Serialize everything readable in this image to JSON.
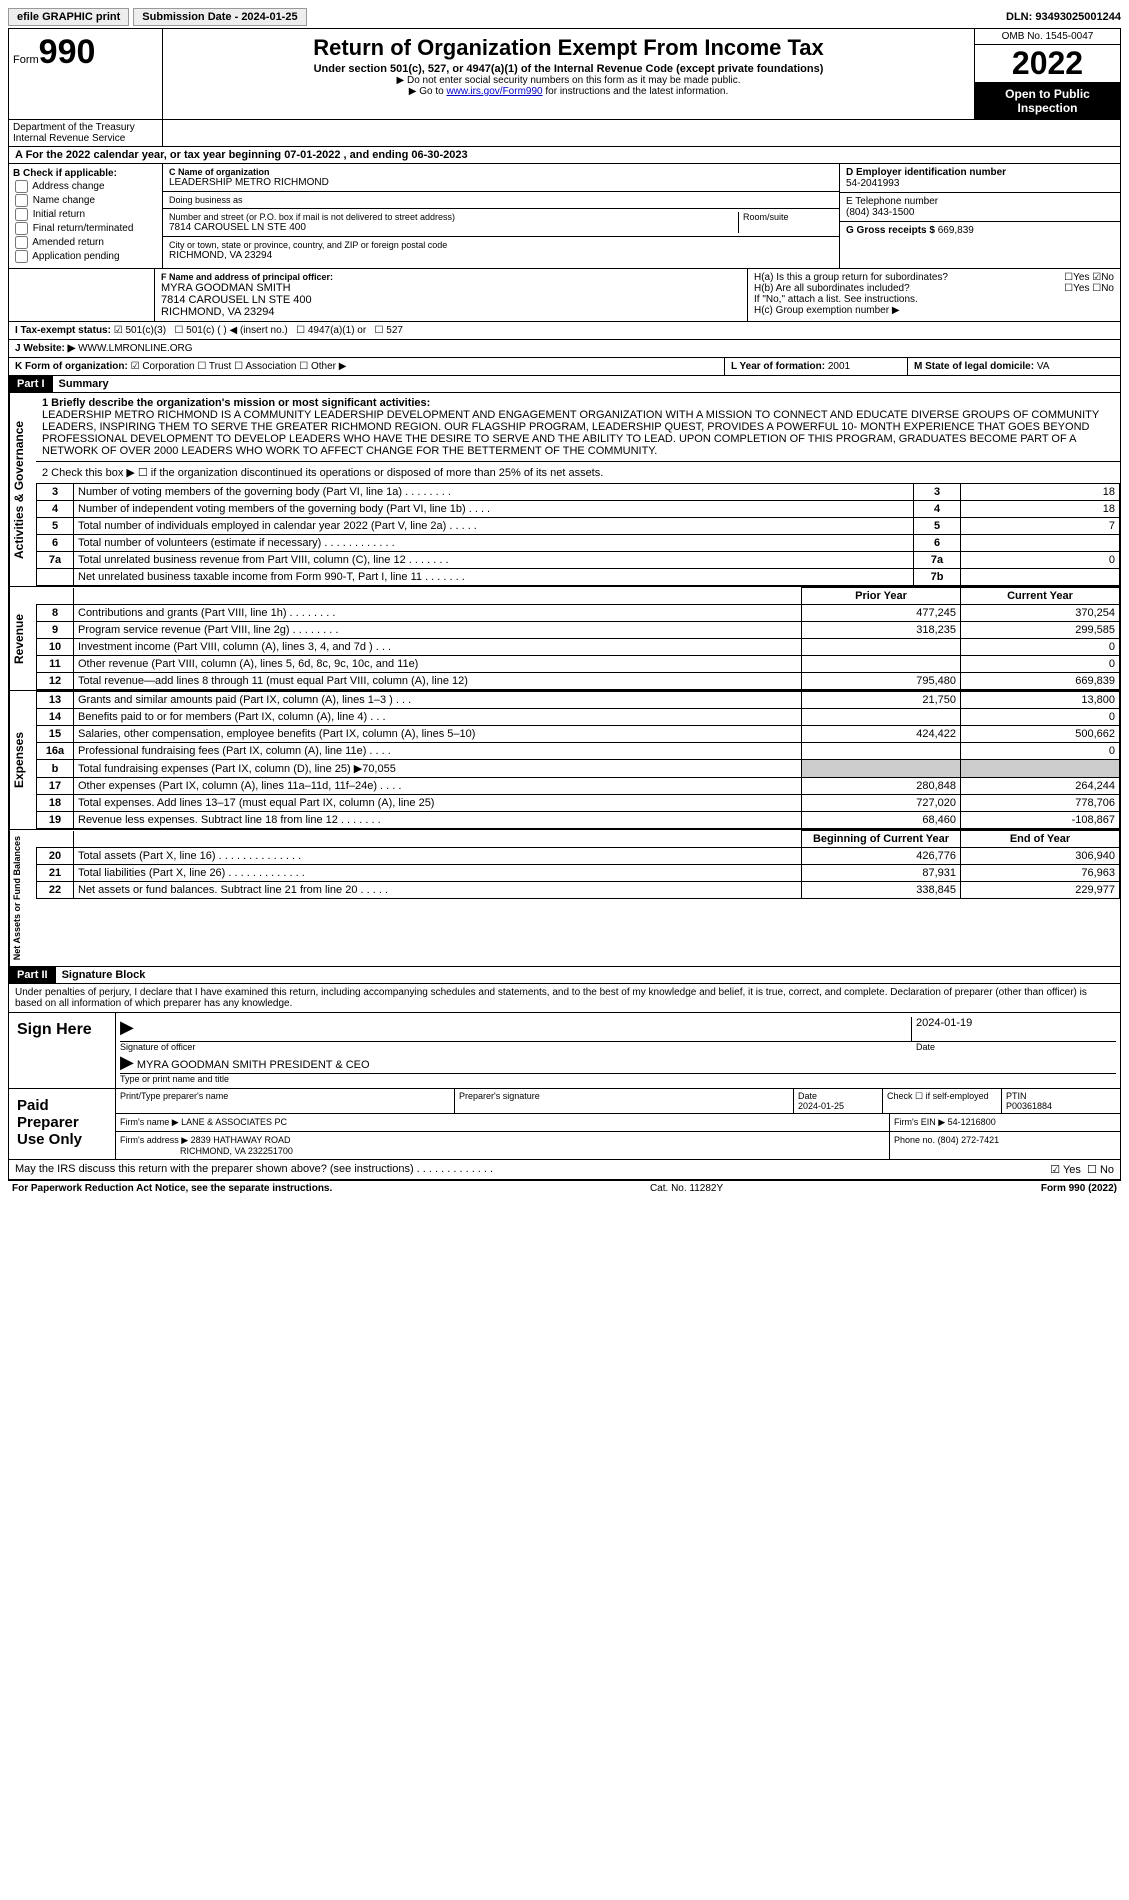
{
  "topbar": {
    "efile": "efile GRAPHIC print",
    "submission_label": "Submission Date - 2024-01-25",
    "dln": "DLN: 93493025001244"
  },
  "header": {
    "form_word": "Form",
    "form_number": "990",
    "dept": "Department of the Treasury\nInternal Revenue Service",
    "title": "Return of Organization Exempt From Income Tax",
    "subtitle": "Under section 501(c), 527, or 4947(a)(1) of the Internal Revenue Code (except private foundations)",
    "note1": "▶ Do not enter social security numbers on this form as it may be made public.",
    "note2_pre": "▶ Go to ",
    "note2_link": "www.irs.gov/Form990",
    "note2_post": " for instructions and the latest information.",
    "omb": "OMB No. 1545-0047",
    "year": "2022",
    "inspection": "Open to Public Inspection"
  },
  "period": "A For the 2022 calendar year, or tax year beginning 07-01-2022   , and ending 06-30-2023",
  "boxB": {
    "title": "B Check if applicable:",
    "items": [
      "Address change",
      "Name change",
      "Initial return",
      "Final return/terminated",
      "Amended return",
      "Application pending"
    ]
  },
  "boxC": {
    "name_label": "C Name of organization",
    "name": "LEADERSHIP METRO RICHMOND",
    "dba_label": "Doing business as",
    "dba": "",
    "addr_label": "Number and street (or P.O. box if mail is not delivered to street address)",
    "room_label": "Room/suite",
    "addr": "7814 CAROUSEL LN STE 400",
    "city_label": "City or town, state or province, country, and ZIP or foreign postal code",
    "city": "RICHMOND, VA  23294"
  },
  "boxD": {
    "label": "D Employer identification number",
    "value": "54-2041993"
  },
  "boxE": {
    "label": "E Telephone number",
    "value": "(804) 343-1500"
  },
  "boxG": {
    "label": "G Gross receipts $",
    "value": "669,839"
  },
  "boxF": {
    "label": "F  Name and address of principal officer:",
    "name": "MYRA GOODMAN SMITH",
    "addr1": "7814 CAROUSEL LN STE 400",
    "addr2": "RICHMOND, VA  23294"
  },
  "boxH": {
    "a": "H(a)  Is this a group return for subordinates?",
    "b": "H(b)  Are all subordinates included?",
    "b_note": "If \"No,\" attach a list. See instructions.",
    "c": "H(c)  Group exemption number ▶",
    "yes": "Yes",
    "no": "No"
  },
  "taxExempt": {
    "label": "I   Tax-exempt status:",
    "opts": [
      "501(c)(3)",
      "501(c) (  ) ◀ (insert no.)",
      "4947(a)(1) or",
      "527"
    ]
  },
  "website": {
    "label": "J   Website: ▶",
    "value": "WWW.LMRONLINE.ORG"
  },
  "boxK": {
    "label": "K Form of organization:",
    "opts": [
      "Corporation",
      "Trust",
      "Association",
      "Other ▶"
    ]
  },
  "boxL": {
    "label": "L Year of formation:",
    "value": "2001"
  },
  "boxM": {
    "label": "M State of legal domicile:",
    "value": "VA"
  },
  "part1": {
    "header": "Part I",
    "title": "Summary",
    "mission_label": "1   Briefly describe the organization's mission or most significant activities:",
    "mission": "LEADERSHIP METRO RICHMOND IS A COMMUNITY LEADERSHIP DEVELOPMENT AND ENGAGEMENT ORGANIZATION WITH A MISSION TO CONNECT AND EDUCATE DIVERSE GROUPS OF COMMUNITY LEADERS, INSPIRING THEM TO SERVE THE GREATER RICHMOND REGION. OUR FLAGSHIP PROGRAM, LEADERSHIP QUEST, PROVIDES A POWERFUL 10- MONTH EXPERIENCE THAT GOES BEYOND PROFESSIONAL DEVELOPMENT TO DEVELOP LEADERS WHO HAVE THE DESIRE TO SERVE AND THE ABILITY TO LEAD. UPON COMPLETION OF THIS PROGRAM, GRADUATES BECOME PART OF A NETWORK OF OVER 2000 LEADERS WHO WORK TO AFFECT CHANGE FOR THE BETTERMENT OF THE COMMUNITY.",
    "line2": "2   Check this box ▶ ☐ if the organization discontinued its operations or disposed of more than 25% of its net assets.",
    "gov_lines": [
      {
        "n": "3",
        "desc": "Number of voting members of the governing body (Part VI, line 1a)   .    .    .    .    .    .    .    .",
        "box": "3",
        "val": "18"
      },
      {
        "n": "4",
        "desc": "Number of independent voting members of the governing body (Part VI, line 1b)   .    .    .    .",
        "box": "4",
        "val": "18"
      },
      {
        "n": "5",
        "desc": "Total number of individuals employed in calendar year 2022 (Part V, line 2a)   .    .    .    .    .",
        "box": "5",
        "val": "7"
      },
      {
        "n": "6",
        "desc": "Total number of volunteers (estimate if necessary)   .    .    .    .    .    .    .    .    .    .    .    .",
        "box": "6",
        "val": ""
      },
      {
        "n": "7a",
        "desc": "Total unrelated business revenue from Part VIII, column (C), line 12   .    .    .    .    .    .    .",
        "box": "7a",
        "val": "0"
      },
      {
        "n": "",
        "desc": "Net unrelated business taxable income from Form 990-T, Part I, line 11   .    .    .    .    .    .    .",
        "box": "7b",
        "val": ""
      }
    ],
    "col_prior": "Prior Year",
    "col_current": "Current Year",
    "rev_lines": [
      {
        "n": "8",
        "desc": "Contributions and grants (Part VIII, line 1h)   .    .    .    .    .    .    .    .",
        "p": "477,245",
        "c": "370,254"
      },
      {
        "n": "9",
        "desc": "Program service revenue (Part VIII, line 2g)   .    .    .    .    .    .    .    .",
        "p": "318,235",
        "c": "299,585"
      },
      {
        "n": "10",
        "desc": "Investment income (Part VIII, column (A), lines 3, 4, and 7d )   .    .    .",
        "p": "",
        "c": "0"
      },
      {
        "n": "11",
        "desc": "Other revenue (Part VIII, column (A), lines 5, 6d, 8c, 9c, 10c, and 11e)",
        "p": "",
        "c": "0"
      },
      {
        "n": "12",
        "desc": "Total revenue—add lines 8 through 11 (must equal Part VIII, column (A), line 12)",
        "p": "795,480",
        "c": "669,839"
      }
    ],
    "exp_lines": [
      {
        "n": "13",
        "desc": "Grants and similar amounts paid (Part IX, column (A), lines 1–3 )   .    .    .",
        "p": "21,750",
        "c": "13,800"
      },
      {
        "n": "14",
        "desc": "Benefits paid to or for members (Part IX, column (A), line 4)   .    .    .",
        "p": "",
        "c": "0"
      },
      {
        "n": "15",
        "desc": "Salaries, other compensation, employee benefits (Part IX, column (A), lines 5–10)",
        "p": "424,422",
        "c": "500,662"
      },
      {
        "n": "16a",
        "desc": "Professional fundraising fees (Part IX, column (A), line 11e)   .    .    .    .",
        "p": "",
        "c": "0"
      },
      {
        "n": "b",
        "desc": "Total fundraising expenses (Part IX, column (D), line 25)  ▶70,055",
        "p": "shade",
        "c": "shade"
      },
      {
        "n": "17",
        "desc": "Other expenses (Part IX, column (A), lines 11a–11d, 11f–24e)   .    .    .    .",
        "p": "280,848",
        "c": "264,244"
      },
      {
        "n": "18",
        "desc": "Total expenses. Add lines 13–17 (must equal Part IX, column (A), line 25)",
        "p": "727,020",
        "c": "778,706"
      },
      {
        "n": "19",
        "desc": "Revenue less expenses. Subtract line 18 from line 12   .    .    .    .    .    .    .",
        "p": "68,460",
        "c": "-108,867"
      }
    ],
    "col_begin": "Beginning of Current Year",
    "col_end": "End of Year",
    "net_lines": [
      {
        "n": "20",
        "desc": "Total assets (Part X, line 16)   .    .    .    .    .    .    .    .    .    .    .    .    .    .",
        "p": "426,776",
        "c": "306,940"
      },
      {
        "n": "21",
        "desc": "Total liabilities (Part X, line 26)   .    .    .    .    .    .    .    .    .    .    .    .    .",
        "p": "87,931",
        "c": "76,963"
      },
      {
        "n": "22",
        "desc": "Net assets or fund balances. Subtract line 21 from line 20   .    .    .    .    .",
        "p": "338,845",
        "c": "229,977"
      }
    ],
    "vtab_gov": "Activities & Governance",
    "vtab_rev": "Revenue",
    "vtab_exp": "Expenses",
    "vtab_net": "Net Assets or Fund Balances"
  },
  "part2": {
    "header": "Part II",
    "title": "Signature Block",
    "decl": "Under penalties of perjury, I declare that I have examined this return, including accompanying schedules and statements, and to the best of my knowledge and belief, it is true, correct, and complete. Declaration of preparer (other than officer) is based on all information of which preparer has any knowledge.",
    "sign_here": "Sign Here",
    "sig_officer": "Signature of officer",
    "sig_date": "Date",
    "sig_date_val": "2024-01-19",
    "officer_name": "MYRA GOODMAN SMITH  PRESIDENT & CEO",
    "officer_name_label": "Type or print name and title",
    "paid": "Paid Preparer Use Only",
    "prep_name_label": "Print/Type preparer's name",
    "prep_sig_label": "Preparer's signature",
    "prep_date_label": "Date",
    "prep_date": "2024-01-25",
    "check_self": "Check ☐ if self-employed",
    "ptin_label": "PTIN",
    "ptin": "P00361884",
    "firm_name_label": "Firm's name    ▶",
    "firm_name": "LANE & ASSOCIATES PC",
    "firm_ein_label": "Firm's EIN ▶",
    "firm_ein": "54-1216800",
    "firm_addr_label": "Firm's address ▶",
    "firm_addr": "2839 HATHAWAY ROAD",
    "firm_city": "RICHMOND, VA  232251700",
    "firm_phone_label": "Phone no.",
    "firm_phone": "(804) 272-7421",
    "discuss": "May the IRS discuss this return with the preparer shown above? (see instructions)   .    .    .    .    .    .    .    .    .    .    .    .    .",
    "yes": "Yes",
    "no": "No"
  },
  "footer": {
    "pra": "For Paperwork Reduction Act Notice, see the separate instructions.",
    "cat": "Cat. No. 11282Y",
    "form": "Form 990 (2022)"
  },
  "colors": {
    "link": "#0000cc",
    "black": "#000000",
    "shade": "#cccccc"
  }
}
